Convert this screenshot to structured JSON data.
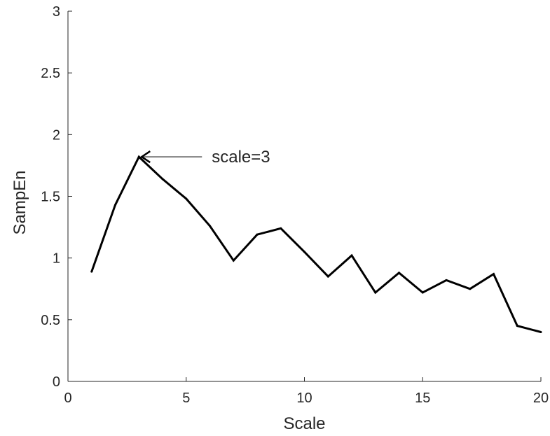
{
  "chart_data": {
    "type": "line",
    "title": "",
    "xlabel": "Scale",
    "ylabel": "SampEn",
    "xlim": [
      0,
      20
    ],
    "ylim": [
      0,
      3
    ],
    "xticks": [
      0,
      5,
      10,
      15,
      20
    ],
    "xtick_labels": [
      "0",
      "5",
      "10",
      "15",
      "20"
    ],
    "yticks": [
      0,
      0.5,
      1,
      1.5,
      2,
      2.5,
      3
    ],
    "ytick_labels": [
      "0",
      "0.5",
      "1",
      "1.5",
      "2",
      "2.5",
      "3"
    ],
    "grid": false,
    "series": [
      {
        "x": [
          1,
          2,
          3,
          4,
          5,
          6,
          7,
          8,
          9,
          10,
          11,
          12,
          13,
          14,
          15,
          16,
          17,
          18,
          19,
          20
        ],
        "y": [
          0.89,
          1.43,
          1.82,
          1.64,
          1.48,
          1.26,
          0.98,
          1.19,
          1.24,
          1.05,
          0.85,
          1.02,
          0.72,
          0.88,
          0.72,
          0.82,
          0.75,
          0.87,
          0.45,
          0.4
        ],
        "color": "#000000"
      }
    ],
    "annotation": {
      "text": "scale=3",
      "x": 3,
      "y": 1.82,
      "arrow_color": "#808080"
    }
  }
}
